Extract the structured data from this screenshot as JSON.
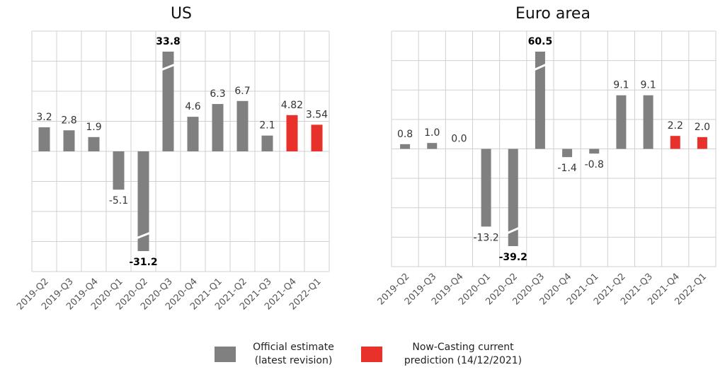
{
  "chart_data": [
    {
      "type": "bar",
      "title": "US",
      "categories": [
        "2019-Q2",
        "2019-Q3",
        "2019-Q4",
        "2020-Q1",
        "2020-Q2",
        "2020-Q3",
        "2020-Q4",
        "2021-Q1",
        "2021-Q2",
        "2021-Q3",
        "2021-Q4",
        "2022-Q1"
      ],
      "series": [
        {
          "name": "Official estimate (latest revision)",
          "color": "#808080",
          "values": [
            3.2,
            2.8,
            1.9,
            -5.1,
            -31.2,
            33.8,
            4.6,
            6.3,
            6.7,
            2.1,
            null,
            null
          ],
          "value_labels": [
            "3.2",
            "2.8",
            "1.9",
            "-5.1",
            "-31.2",
            "33.8",
            "4.6",
            "6.3",
            "6.7",
            "2.1",
            null,
            null
          ]
        },
        {
          "name": "Now-Casting current prediction (14/12/2021)",
          "color": "#e8312a",
          "values": [
            null,
            null,
            null,
            null,
            null,
            null,
            null,
            null,
            null,
            null,
            4.82,
            3.54
          ],
          "value_labels": [
            null,
            null,
            null,
            null,
            null,
            null,
            null,
            null,
            null,
            null,
            "4.82",
            "3.54"
          ]
        }
      ],
      "ylim": [
        -16,
        16
      ],
      "yticks": [
        -16,
        -12,
        -8,
        -4,
        0,
        4,
        8,
        12,
        16
      ],
      "grid": true
    },
    {
      "type": "bar",
      "title": "Euro area",
      "categories": [
        "2019-Q2",
        "2019-Q3",
        "2019-Q4",
        "2020-Q1",
        "2020-Q2",
        "2020-Q3",
        "2020-Q4",
        "2021-Q1",
        "2021-Q2",
        "2021-Q3",
        "2021-Q4",
        "2022-Q1"
      ],
      "series": [
        {
          "name": "Official estimate (latest revision)",
          "color": "#808080",
          "values": [
            0.8,
            1.0,
            0.0,
            -13.2,
            -39.2,
            60.5,
            -1.4,
            -0.8,
            9.1,
            9.1,
            null,
            null
          ],
          "value_labels": [
            "0.8",
            "1.0",
            "0.0",
            "-13.2",
            "-39.2",
            "60.5",
            "-1.4",
            "-0.8",
            "9.1",
            "9.1",
            null,
            null
          ]
        },
        {
          "name": "Now-Casting current prediction (14/12/2021)",
          "color": "#e8312a",
          "values": [
            null,
            null,
            null,
            null,
            null,
            null,
            null,
            null,
            null,
            null,
            2.2,
            2.0
          ],
          "value_labels": [
            null,
            null,
            null,
            null,
            null,
            null,
            null,
            null,
            null,
            null,
            "2.2",
            "2.0"
          ]
        }
      ],
      "ylim": [
        -20,
        20
      ],
      "yticks": [
        -20,
        -15,
        -10,
        -5,
        0,
        5,
        10,
        15,
        20
      ],
      "grid": true
    }
  ]
}
